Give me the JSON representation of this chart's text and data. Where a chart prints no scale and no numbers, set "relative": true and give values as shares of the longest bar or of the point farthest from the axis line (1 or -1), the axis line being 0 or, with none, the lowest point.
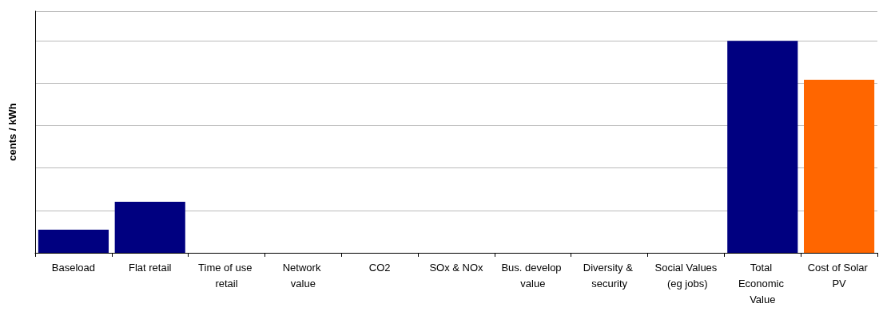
{
  "chart_data": {
    "type": "bar",
    "ylabel": "cents / kWh",
    "relative": true,
    "grid": "y",
    "categories": [
      "Baseload",
      "Flat retail",
      "Time of use retail",
      "Network value",
      "CO2",
      "SOx & NOx",
      "Bus. develop value",
      "Diversity & security",
      "Social Values (eg jobs)",
      "Total Economic Value",
      "Cost of Solar PV"
    ],
    "values": [
      0.109,
      0.241,
      0,
      0,
      0,
      0,
      0,
      0,
      0,
      1,
      0.816
    ],
    "colors": [
      "#000080",
      "#000080",
      "#000080",
      "#000080",
      "#000080",
      "#000080",
      "#000080",
      "#000080",
      "#000080",
      "#000080",
      "#ff6600"
    ]
  }
}
